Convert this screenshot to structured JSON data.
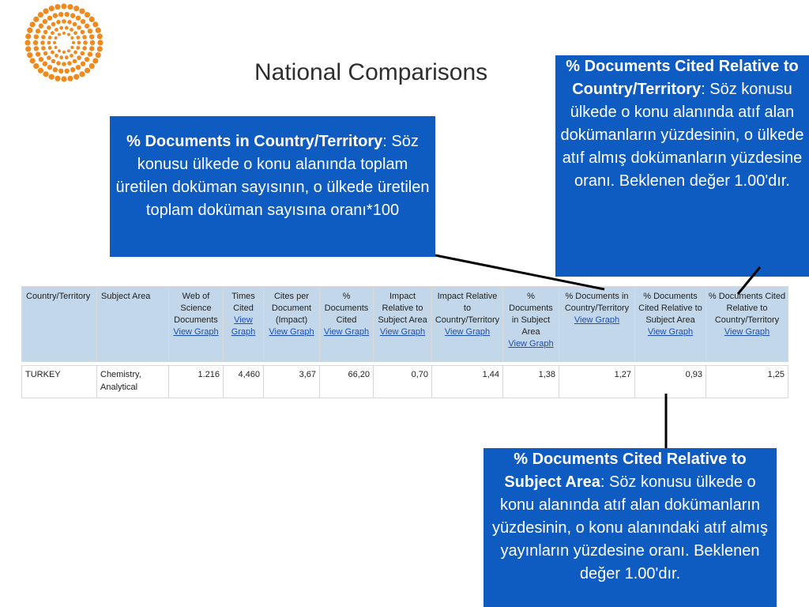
{
  "title": "National Comparisons",
  "callouts": {
    "docs_in_country": {
      "term": "% Documents in Country/Territory",
      "text": ": Söz konusu ülkede o konu alanında toplam üretilen doküman sayısının, o ülkede üretilen toplam doküman sayısına oranı*100"
    },
    "docs_cited_country": {
      "term": "% Documents Cited Relative to Country/Territory",
      "text": ": Söz konusu ülkede o konu alanında atıf alan dokümanların yüzdesinin, o ülkede atıf almış dokümanların yüzdesine oranı. Beklenen değer 1.00'dır."
    },
    "docs_cited_subject": {
      "term": "% Documents Cited Relative to Subject Area",
      "text": ": Söz konusu ülkede o konu alanında atıf alan dokümanların yüzdesinin, o konu alanındaki atıf almış yayınların yüzdesine oranı. Beklenen değer 1.00'dır."
    }
  },
  "table": {
    "columns": [
      {
        "label": "Country/Territory",
        "link": ""
      },
      {
        "label": "Subject Area",
        "link": ""
      },
      {
        "label": "Web of Science Documents",
        "link": "View Graph"
      },
      {
        "label": "Times Cited",
        "link": "View Graph"
      },
      {
        "label": "Cites per Document (Impact)",
        "link": "View Graph"
      },
      {
        "label": "% Documents Cited",
        "link": "View Graph"
      },
      {
        "label": "Impact Relative to Subject Area",
        "link": "View Graph"
      },
      {
        "label": "Impact Relative to Country/Territory",
        "link": "View Graph"
      },
      {
        "label": "% Documents in Subject Area",
        "link": "View Graph"
      },
      {
        "label": "% Documents in Country/Territory",
        "link": "View Graph"
      },
      {
        "label": "% Documents Cited Relative to Subject Area",
        "link": "View Graph"
      },
      {
        "label": "% Documents Cited Relative to Country/Territory",
        "link": "View Graph"
      }
    ],
    "rows": [
      [
        "TURKEY",
        "Chemistry, Analytical",
        "1.216",
        "4,460",
        "3,67",
        "66,20",
        "0,70",
        "1,44",
        "1,38",
        "1,27",
        "0,93",
        "1,25"
      ]
    ]
  },
  "colors": {
    "callout_bg": "#0e5bc2",
    "header_bg": "#c3d7ea",
    "logo_orange": "#f08a1e",
    "link": "#1b4fb8"
  },
  "logo_icon": "orange-dot-circle-logo"
}
